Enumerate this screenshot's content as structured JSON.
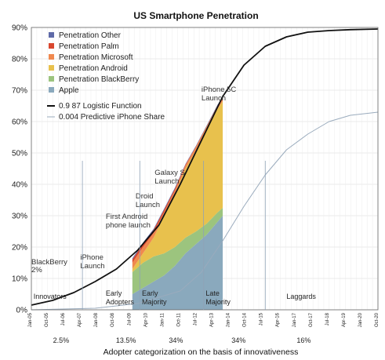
{
  "chart_data": {
    "type": "area",
    "title": "US Smartphone Penetration",
    "xlabel": "Adopter categorization on the basis of innovativeness",
    "ylabel": "",
    "y_ticks": [
      "0%",
      "10%",
      "20%",
      "30%",
      "40%",
      "50%",
      "60%",
      "70%",
      "80%",
      "90%"
    ],
    "ylim": [
      0,
      90
    ],
    "xlim": [
      2005,
      2021.3
    ],
    "x_tick_labels": [
      "Jan-05",
      "Oct-05",
      "Jul-06",
      "Apr-07",
      "Jan-08",
      "Oct-08",
      "Jul-09",
      "Apr-10",
      "Jan-11",
      "Oct-11",
      "Jul-12",
      "Apr-13",
      "Jan-14",
      "Oct-14",
      "Jul-15",
      "Apr-16",
      "Jan-17",
      "Oct-17",
      "Jul-18",
      "Apr-19",
      "Jan-20",
      "Oct-20"
    ],
    "grid": true,
    "legend_position": "top-left",
    "legend": [
      {
        "name": "Penetration Other",
        "color": "#5f6aa8"
      },
      {
        "name": "Penetration Palm",
        "color": "#d9472f"
      },
      {
        "name": "Penetration Microsoft",
        "color": "#f0894f"
      },
      {
        "name": "Penetration Android",
        "color": "#e8c14d"
      },
      {
        "name": "Penetration BlackBerry",
        "color": "#9cc47e"
      },
      {
        "name": "Apple",
        "color": "#8aa9bd"
      }
    ],
    "line_legend": [
      {
        "name": "0.9 87 Logistic Function",
        "color": "#111111"
      },
      {
        "name": "0.004 Predictive iPhone Share",
        "color": "#9aabbd"
      }
    ],
    "x": [
      2009.75,
      2010.25,
      2010.75,
      2011.25,
      2011.75,
      2012.25,
      2012.75,
      2013.25,
      2013.75,
      2014.0
    ],
    "series": [
      {
        "name": "Apple",
        "values": [
          5,
          7,
          9,
          11,
          14,
          18,
          21,
          24,
          28,
          30
        ]
      },
      {
        "name": "Penetration BlackBerry",
        "values": [
          7,
          8,
          8,
          7,
          6,
          5,
          4,
          3.5,
          3,
          2.5
        ]
      },
      {
        "name": "Penetration Android",
        "values": [
          1,
          3,
          6,
          12,
          17,
          22,
          26,
          30,
          33,
          34
        ]
      },
      {
        "name": "Penetration Microsoft",
        "values": [
          2,
          2,
          1.5,
          1.2,
          1,
          1,
          1,
          1,
          1,
          1
        ]
      },
      {
        "name": "Penetration Palm",
        "values": [
          1,
          1,
          1,
          0.8,
          0.6,
          0.3,
          0.2,
          0.1,
          0.1,
          0.1
        ]
      },
      {
        "name": "Penetration Other",
        "values": [
          0.4,
          0.4,
          0.3,
          0.3,
          0.3,
          0.2,
          0.2,
          0.2,
          0.2,
          0.2
        ]
      }
    ],
    "logistic": {
      "x": [
        2005.0,
        2006.0,
        2007.0,
        2008.0,
        2009.0,
        2010.0,
        2011.0,
        2012.0,
        2013.0,
        2014.0,
        2015.0,
        2016.0,
        2017.0,
        2018.0,
        2019.0,
        2020.0,
        2021.3
      ],
      "values": [
        1.5,
        3,
        5.5,
        9,
        13,
        19,
        27,
        40,
        54,
        68,
        78,
        84,
        87,
        88.5,
        89,
        89.3,
        89.5
      ]
    },
    "predictive_iphone": {
      "x": [
        2005.0,
        2008.0,
        2010.0,
        2012.0,
        2013.0,
        2014.0,
        2015.0,
        2016.0,
        2017.0,
        2018.0,
        2019.0,
        2020.0,
        2021.3
      ],
      "values": [
        0,
        0.5,
        2,
        6,
        12,
        22,
        33,
        43,
        51,
        56,
        60,
        62,
        63
      ]
    },
    "annotations": [
      {
        "text": "BlackBerry",
        "x": 2005.0,
        "y": 14.5
      },
      {
        "text": "2%",
        "x": 2005.0,
        "y": 12.0
      },
      {
        "text": "iPhone",
        "x": 2007.3,
        "y": 16.0
      },
      {
        "text": "Launch",
        "x": 2007.3,
        "y": 13.3
      },
      {
        "text": "First Android",
        "x": 2008.5,
        "y": 29.0
      },
      {
        "text": "phone launch",
        "x": 2008.5,
        "y": 26.3
      },
      {
        "text": "Droid",
        "x": 2009.9,
        "y": 35.5
      },
      {
        "text": "Launch",
        "x": 2009.9,
        "y": 32.8
      },
      {
        "text": "Galaxy S",
        "x": 2010.8,
        "y": 43.0
      },
      {
        "text": "Launch",
        "x": 2010.8,
        "y": 40.3
      },
      {
        "text": "iPhone 5C",
        "x": 2013.0,
        "y": 69.5
      },
      {
        "text": "Launch",
        "x": 2013.0,
        "y": 66.8
      }
    ],
    "segments": [
      {
        "name": "Innovators",
        "pct": "2.5%",
        "x": 2005.1,
        "x_end": 2007.4
      },
      {
        "name": "Early Adopters",
        "pct": "13.5%",
        "x": 2008.5,
        "x_end": 2010.1
      },
      {
        "name": "Early Majority",
        "pct": "34%",
        "x": 2010.2,
        "x_end": 2013.1
      },
      {
        "name": "Late Majority",
        "pct": "34%",
        "x": 2013.2,
        "x_end": 2016.0
      },
      {
        "name": "Laggards",
        "pct": "16%",
        "x": 2017.0
      }
    ]
  }
}
